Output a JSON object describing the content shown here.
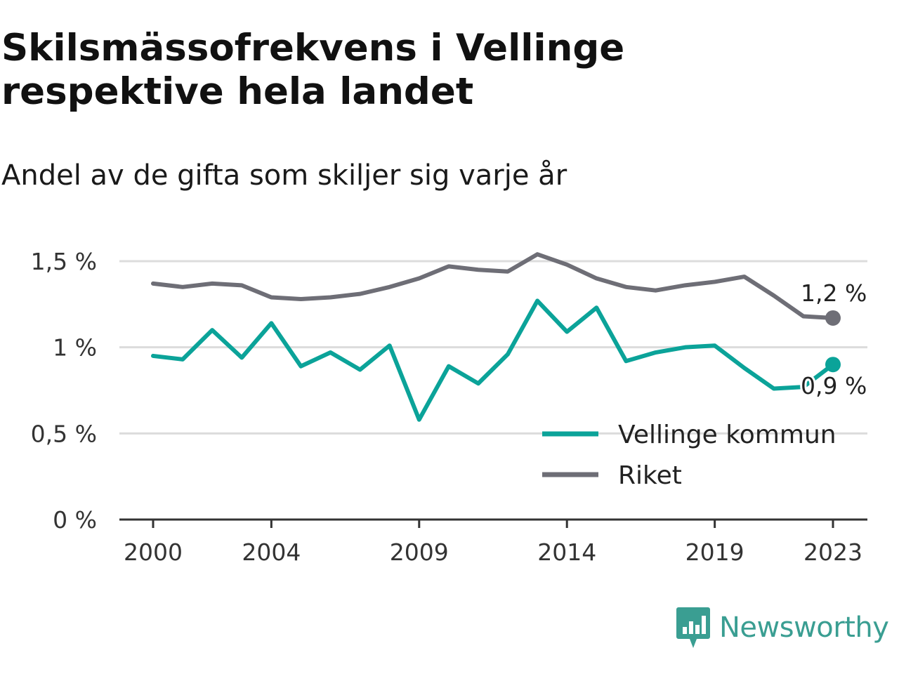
{
  "title": "Skilsmässofrekvens i Vellinge respektive hela landet",
  "subtitle": "Andel av de gifta som skiljer sig varje år",
  "brand": "Newsworthy",
  "brand_icon": "newsworthy-logo-icon",
  "colors": {
    "vellinge": "#0ba399",
    "riket": "#6e6e76",
    "grid": "#dcdcdc",
    "axis": "#333333"
  },
  "chart_data": {
    "type": "line",
    "x": [
      2000,
      2001,
      2002,
      2003,
      2004,
      2005,
      2006,
      2007,
      2008,
      2009,
      2010,
      2011,
      2012,
      2013,
      2014,
      2015,
      2016,
      2017,
      2018,
      2019,
      2020,
      2021,
      2022,
      2023
    ],
    "x_ticks": [
      2000,
      2004,
      2009,
      2014,
      2019,
      2023
    ],
    "y_ticks": [
      {
        "value": 0,
        "label": "0 %"
      },
      {
        "value": 0.5,
        "label": "0,5 %"
      },
      {
        "value": 1,
        "label": "1 %"
      },
      {
        "value": 1.5,
        "label": "1,5 %"
      }
    ],
    "ylim": [
      0,
      1.5
    ],
    "grid": true,
    "legend_position": "bottom-right",
    "series": [
      {
        "name": "Vellinge kommun",
        "key": "vellinge",
        "values": [
          0.95,
          0.93,
          1.1,
          0.94,
          1.14,
          0.89,
          0.97,
          0.87,
          1.01,
          0.58,
          0.89,
          0.79,
          0.96,
          1.27,
          1.09,
          1.23,
          0.92,
          0.97,
          1.0,
          1.01,
          0.88,
          0.76,
          0.77,
          0.9
        ],
        "end_label": "0,9 %"
      },
      {
        "name": "Riket",
        "key": "riket",
        "values": [
          1.37,
          1.35,
          1.37,
          1.36,
          1.29,
          1.28,
          1.29,
          1.31,
          1.35,
          1.4,
          1.47,
          1.45,
          1.44,
          1.54,
          1.48,
          1.4,
          1.35,
          1.33,
          1.36,
          1.38,
          1.41,
          1.3,
          1.18,
          1.17
        ],
        "end_label": "1,2 %"
      }
    ]
  }
}
